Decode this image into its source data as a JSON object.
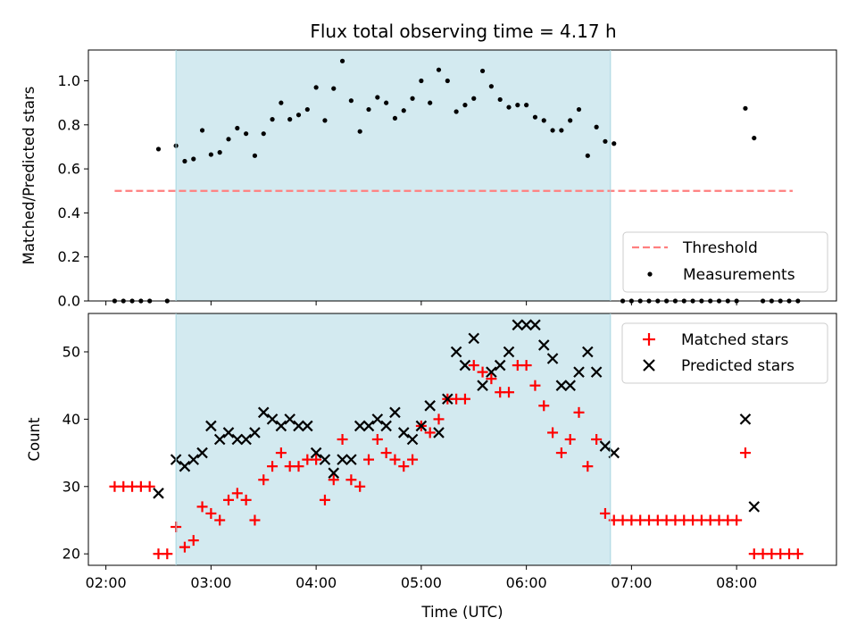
{
  "chart_data": [
    {
      "type": "scatter",
      "title": "Flux total observing time = 4.17 h",
      "xlabel": "",
      "ylabel": "Matched/Predicted stars",
      "ylim": [
        0,
        1.14
      ],
      "yticks": [
        0.0,
        0.2,
        0.4,
        0.6,
        0.8,
        1.0
      ],
      "ytick_labels": [
        "0.0",
        "0.2",
        "0.4",
        "0.6",
        "0.8",
        "1.0"
      ],
      "shaded_region": {
        "x_start": "02:40",
        "x_end": "06:48",
        "color": "#d3eaf0"
      },
      "legend": {
        "position": "lower-right",
        "entries": [
          "Threshold",
          "Measurements"
        ]
      },
      "series": [
        {
          "name": "Threshold",
          "kind": "dashed-line",
          "color": "#ff7f7f",
          "x": [
            "02:05",
            "08:32"
          ],
          "y": [
            0.5,
            0.5
          ]
        },
        {
          "name": "Measurements",
          "kind": "dots",
          "color": "#000000",
          "x": [
            "02:05",
            "02:10",
            "02:15",
            "02:20",
            "02:25",
            "02:30",
            "02:35",
            "02:40",
            "02:45",
            "02:50",
            "02:55",
            "03:00",
            "03:05",
            "03:10",
            "03:15",
            "03:20",
            "03:25",
            "03:30",
            "03:35",
            "03:40",
            "03:45",
            "03:50",
            "03:55",
            "04:00",
            "04:05",
            "04:10",
            "04:15",
            "04:20",
            "04:25",
            "04:30",
            "04:35",
            "04:40",
            "04:45",
            "04:50",
            "04:55",
            "05:00",
            "05:05",
            "05:10",
            "05:15",
            "05:20",
            "05:25",
            "05:30",
            "05:35",
            "05:40",
            "05:45",
            "05:50",
            "05:55",
            "06:00",
            "06:05",
            "06:10",
            "06:15",
            "06:20",
            "06:25",
            "06:30",
            "06:35",
            "06:40",
            "06:45",
            "06:50",
            "06:55",
            "07:00",
            "07:05",
            "07:10",
            "07:15",
            "07:20",
            "07:25",
            "07:30",
            "07:35",
            "07:40",
            "07:45",
            "07:50",
            "07:55",
            "08:00",
            "08:05",
            "08:10",
            "08:15",
            "08:20",
            "08:25",
            "08:30",
            "08:35"
          ],
          "y": [
            0,
            0,
            0,
            0,
            0,
            0.69,
            0,
            0.705,
            0.635,
            0.645,
            0.775,
            0.665,
            0.675,
            0.735,
            0.785,
            0.76,
            0.66,
            0.76,
            0.825,
            0.9,
            0.825,
            0.845,
            0.87,
            0.97,
            0.82,
            0.965,
            1.09,
            0.91,
            0.77,
            0.87,
            0.925,
            0.9,
            0.83,
            0.865,
            0.92,
            1.0,
            0.9,
            1.05,
            1.0,
            0.86,
            0.89,
            0.92,
            1.045,
            0.975,
            0.915,
            0.88,
            0.89,
            0.89,
            0.835,
            0.82,
            0.775,
            0.775,
            0.82,
            0.87,
            0.66,
            0.79,
            0.725,
            0.715,
            0,
            0,
            0,
            0,
            0,
            0,
            0,
            0,
            0,
            0,
            0,
            0,
            0,
            0,
            0.875,
            0.74,
            0,
            0,
            0,
            0,
            0
          ]
        }
      ]
    },
    {
      "type": "scatter",
      "xlabel": "Time (UTC)",
      "ylabel": "Count",
      "ylim": [
        18.3,
        55.7
      ],
      "yticks": [
        20,
        30,
        40,
        50
      ],
      "ytick_labels": [
        "20",
        "30",
        "40",
        "50"
      ],
      "xticks": [
        "02:00",
        "03:00",
        "04:00",
        "05:00",
        "06:00",
        "07:00",
        "08:00"
      ],
      "shaded_region": {
        "x_start": "02:40",
        "x_end": "06:48",
        "color": "#d3eaf0"
      },
      "legend": {
        "position": "upper-right",
        "entries": [
          "Matched stars",
          "Predicted stars"
        ]
      },
      "series": [
        {
          "name": "Matched stars",
          "kind": "plus",
          "color": "#ff0000",
          "x": [
            "02:05",
            "02:10",
            "02:15",
            "02:20",
            "02:25",
            "02:30",
            "02:35",
            "02:40",
            "02:45",
            "02:50",
            "02:55",
            "03:00",
            "03:05",
            "03:10",
            "03:15",
            "03:20",
            "03:25",
            "03:30",
            "03:35",
            "03:40",
            "03:45",
            "03:50",
            "03:55",
            "04:00",
            "04:05",
            "04:10",
            "04:15",
            "04:20",
            "04:25",
            "04:30",
            "04:35",
            "04:40",
            "04:45",
            "04:50",
            "04:55",
            "05:00",
            "05:05",
            "05:10",
            "05:15",
            "05:20",
            "05:25",
            "05:30",
            "05:35",
            "05:40",
            "05:45",
            "05:50",
            "05:55",
            "06:00",
            "06:05",
            "06:10",
            "06:15",
            "06:20",
            "06:25",
            "06:30",
            "06:35",
            "06:40",
            "06:45",
            "06:50",
            "06:55",
            "07:00",
            "07:05",
            "07:10",
            "07:15",
            "07:20",
            "07:25",
            "07:30",
            "07:35",
            "07:40",
            "07:45",
            "07:50",
            "07:55",
            "08:00",
            "08:05",
            "08:10",
            "08:15",
            "08:20",
            "08:25",
            "08:30",
            "08:35"
          ],
          "y": [
            30,
            30,
            30,
            30,
            30,
            20,
            20,
            24,
            21,
            22,
            27,
            26,
            25,
            28,
            29,
            28,
            25,
            31,
            33,
            35,
            33,
            33,
            34,
            34,
            28,
            31,
            37,
            31,
            30,
            34,
            37,
            35,
            34,
            33,
            34,
            39,
            38,
            40,
            43,
            43,
            43,
            48,
            47,
            46,
            44,
            44,
            48,
            48,
            45,
            42,
            38,
            35,
            37,
            41,
            33,
            37,
            26,
            25,
            25,
            25,
            25,
            25,
            25,
            25,
            25,
            25,
            25,
            25,
            25,
            25,
            25,
            25,
            35,
            20,
            20,
            20,
            20,
            20,
            20
          ]
        },
        {
          "name": "Predicted stars",
          "kind": "x",
          "color": "#000000",
          "x": [
            "02:30",
            "02:40",
            "02:45",
            "02:50",
            "02:55",
            "03:00",
            "03:05",
            "03:10",
            "03:15",
            "03:20",
            "03:25",
            "03:30",
            "03:35",
            "03:40",
            "03:45",
            "03:50",
            "03:55",
            "04:00",
            "04:05",
            "04:10",
            "04:15",
            "04:20",
            "04:25",
            "04:30",
            "04:35",
            "04:40",
            "04:45",
            "04:50",
            "04:55",
            "05:00",
            "05:05",
            "05:10",
            "05:15",
            "05:20",
            "05:25",
            "05:30",
            "05:35",
            "05:40",
            "05:45",
            "05:50",
            "05:55",
            "06:00",
            "06:05",
            "06:10",
            "06:15",
            "06:20",
            "06:25",
            "06:30",
            "06:35",
            "06:40",
            "06:45",
            "06:50",
            "08:05",
            "08:10"
          ],
          "y": [
            29,
            34,
            33,
            34,
            35,
            39,
            37,
            38,
            37,
            37,
            38,
            41,
            40,
            39,
            40,
            39,
            39,
            35,
            34,
            32,
            34,
            34,
            39,
            39,
            40,
            39,
            41,
            38,
            37,
            39,
            42,
            38,
            43,
            50,
            48,
            52,
            45,
            47,
            48,
            50,
            54,
            54,
            54,
            51,
            49,
            45,
            45,
            47,
            50,
            47,
            36,
            35,
            40,
            27
          ]
        }
      ]
    }
  ]
}
